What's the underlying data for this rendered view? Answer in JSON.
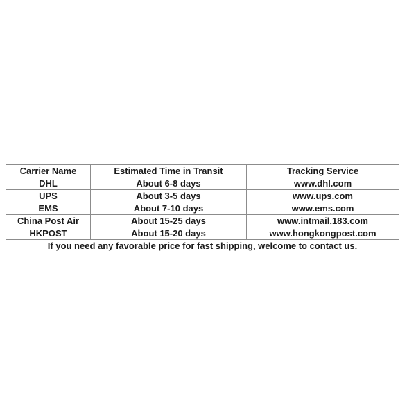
{
  "table": {
    "headers": [
      "Carrier Name",
      "Estimated Time in Transit",
      "Tracking Service"
    ],
    "rows": [
      {
        "carrier": "DHL",
        "transit_time": "About 6-8 days",
        "tracking": "www.dhl.com"
      },
      {
        "carrier": "UPS",
        "transit_time": "About 3-5 days",
        "tracking": "www.ups.com"
      },
      {
        "carrier": "EMS",
        "transit_time": "About 7-10 days",
        "tracking": "www.ems.com"
      },
      {
        "carrier": "China Post Air",
        "transit_time": "About 15-25 days",
        "tracking": "www.intmail.183.com"
      },
      {
        "carrier": "HKPOST",
        "transit_time": "About 15-20 days",
        "tracking": "www.hongkongpost.com"
      }
    ],
    "footer_note": "If you need any favorable price for fast shipping, welcome to contact us."
  },
  "colors": {
    "background": "#ffffff",
    "text": "#1c1c1c",
    "border_outer": "#5e5e5e",
    "border_inner": "#8c8c8c"
  }
}
